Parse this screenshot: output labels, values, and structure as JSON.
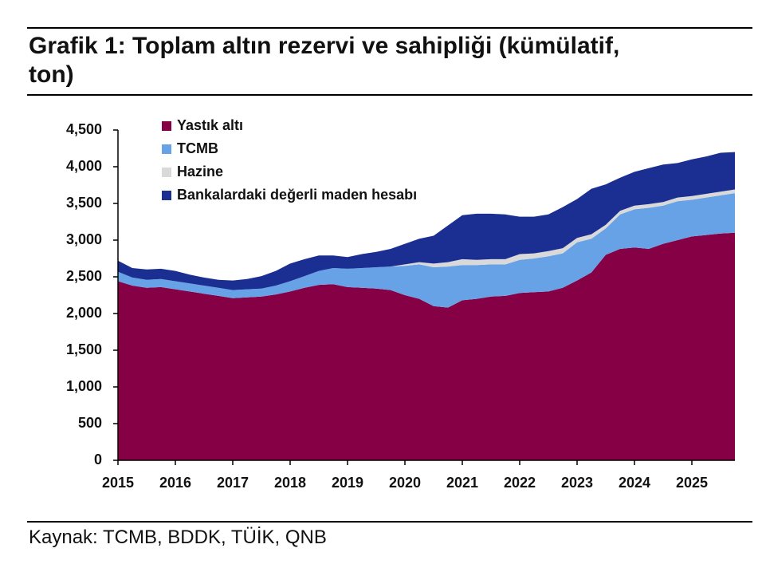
{
  "chart_data": {
    "type": "stacked-area",
    "title": "Grafik 1: Toplam altın rezervi ve sahipliği (kümülatif, ton)",
    "source": "Kaynak: TCMB, BDDK, TÜİK, QNB",
    "x": [
      2015,
      2015.25,
      2015.5,
      2015.75,
      2016,
      2016.25,
      2016.5,
      2016.75,
      2017,
      2017.25,
      2017.5,
      2017.75,
      2018,
      2018.25,
      2018.5,
      2018.75,
      2019,
      2019.25,
      2019.5,
      2019.75,
      2020,
      2020.25,
      2020.5,
      2020.75,
      2021,
      2021.25,
      2021.5,
      2021.75,
      2022,
      2022.25,
      2022.5,
      2022.75,
      2023,
      2023.25,
      2023.5,
      2023.75,
      2024,
      2024.25,
      2024.5,
      2024.75,
      2025,
      2025.25,
      2025.5,
      2025.75
    ],
    "series": [
      {
        "name": "Yastık altı",
        "color": "#850045",
        "values": [
          2440,
          2380,
          2350,
          2360,
          2330,
          2300,
          2270,
          2240,
          2210,
          2220,
          2230,
          2260,
          2300,
          2350,
          2390,
          2400,
          2360,
          2350,
          2340,
          2320,
          2250,
          2200,
          2100,
          2080,
          2180,
          2200,
          2230,
          2240,
          2280,
          2290,
          2300,
          2350,
          2450,
          2560,
          2800,
          2880,
          2900,
          2880,
          2950,
          3000,
          3050,
          3070,
          3090,
          3100
        ]
      },
      {
        "name": "TCMB",
        "color": "#67a2e6",
        "values": [
          130,
          110,
          110,
          110,
          110,
          110,
          110,
          110,
          110,
          110,
          110,
          120,
          140,
          160,
          190,
          220,
          250,
          270,
          290,
          320,
          400,
          470,
          530,
          560,
          480,
          460,
          440,
          430,
          450,
          460,
          480,
          470,
          520,
          460,
          360,
          470,
          520,
          560,
          520,
          530,
          500,
          510,
          520,
          540
        ]
      },
      {
        "name": "Hazine",
        "color": "#d9d9d9",
        "values": [
          0,
          0,
          0,
          0,
          0,
          0,
          0,
          0,
          0,
          0,
          0,
          0,
          0,
          0,
          0,
          0,
          0,
          0,
          0,
          0,
          20,
          30,
          50,
          60,
          80,
          70,
          70,
          70,
          80,
          70,
          70,
          70,
          60,
          60,
          50,
          50,
          50,
          50,
          50,
          50,
          50,
          50,
          50,
          50
        ]
      },
      {
        "name": "Bankalardaki değerli maden hesabı",
        "color": "#1b2f92",
        "values": [
          150,
          130,
          140,
          140,
          140,
          120,
          110,
          110,
          130,
          140,
          170,
          200,
          240,
          230,
          210,
          170,
          160,
          190,
          210,
          240,
          280,
          320,
          380,
          500,
          600,
          630,
          620,
          610,
          510,
          500,
          500,
          560,
          530,
          620,
          550,
          450,
          460,
          490,
          510,
          470,
          500,
          510,
          530,
          510
        ]
      }
    ],
    "xlim": [
      2015,
      2025.75
    ],
    "xticks": [
      2015,
      2016,
      2017,
      2018,
      2019,
      2020,
      2021,
      2022,
      2023,
      2024,
      2025
    ],
    "ylim": [
      0,
      4500
    ],
    "yticks": [
      0,
      500,
      {
        "value": 1000,
        "label": "1,000"
      },
      {
        "value": 1500,
        "label": "1,500"
      },
      {
        "value": 2000,
        "label": "2,000"
      },
      {
        "value": 2500,
        "label": "2,500"
      },
      {
        "value": 3000,
        "label": "3,000"
      },
      {
        "value": 3500,
        "label": "3,500"
      },
      {
        "value": 4000,
        "label": "4,000"
      },
      {
        "value": 4500,
        "label": "4,500"
      }
    ],
    "legend": "top-left"
  }
}
